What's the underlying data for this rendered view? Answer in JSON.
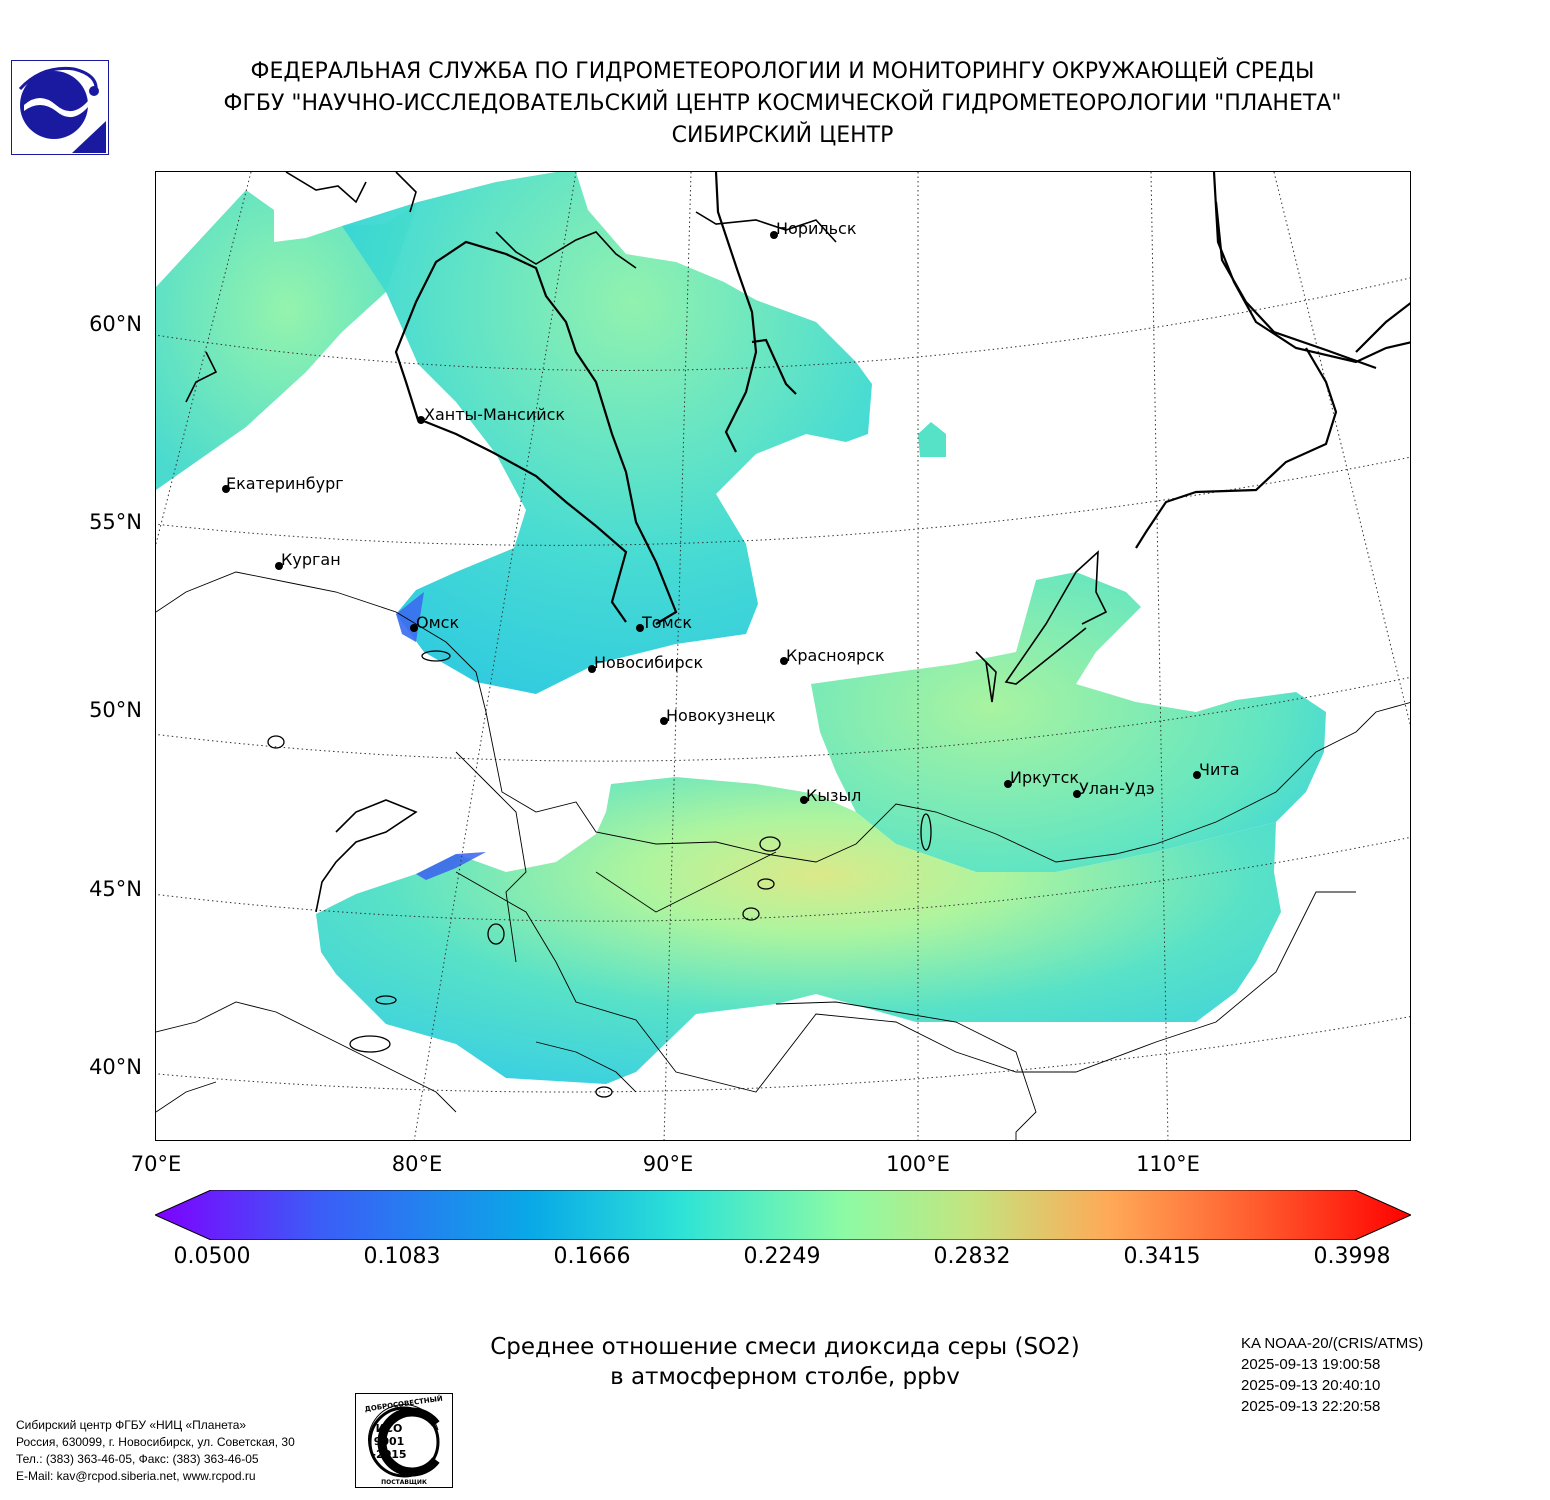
{
  "header": {
    "line1": "ФЕДЕРАЛЬНАЯ СЛУЖБА ПО ГИДРОМЕТЕОРОЛОГИИ И МОНИТОРИНГУ ОКРУЖАЮЩЕЙ СРЕДЫ",
    "line2": "ФГБУ \"НАУЧНО-ИССЛЕДОВАТЕЛЬСКИЙ ЦЕНТР КОСМИЧЕСКОЙ ГИДРОМЕТЕОРОЛОГИИ \"ПЛАНЕТА\"",
    "line3": "СИБИРСКИЙ ЦЕНТР"
  },
  "logo": {
    "icon": "planeta-logo-icon",
    "color": "#1a1aa0"
  },
  "map": {
    "lat_labels": [
      "60°N",
      "55°N",
      "50°N",
      "45°N",
      "40°N"
    ],
    "lon_labels": [
      "70°E",
      "80°E",
      "90°E",
      "100°E",
      "110°E"
    ],
    "cities": [
      {
        "name": "Норильск"
      },
      {
        "name": "Ханты-Мансийск"
      },
      {
        "name": "Екатеринбург"
      },
      {
        "name": "Курган"
      },
      {
        "name": "Омск"
      },
      {
        "name": "Томск"
      },
      {
        "name": "Новосибирск"
      },
      {
        "name": "Красноярск"
      },
      {
        "name": "Новокузнецк"
      },
      {
        "name": "Кызыл"
      },
      {
        "name": "Иркутск"
      },
      {
        "name": "Улан-Удэ"
      },
      {
        "name": "Чита"
      }
    ]
  },
  "colorbar": {
    "min": 0.05,
    "max": 0.3998,
    "ticks": [
      "0.0500",
      "0.1083",
      "0.1666",
      "0.2249",
      "0.2832",
      "0.3415",
      "0.3998"
    ],
    "colors": [
      "#7f00ff",
      "#3c5cf7",
      "#09a9e7",
      "#2ee3d6",
      "#8dfba4",
      "#c4e47f",
      "#ffa957",
      "#ff5a2d",
      "#ff0000"
    ]
  },
  "caption": {
    "line1": "Среднее отношение смеси диоксида серы (SO2)",
    "line2": "в атмосферном столбе, ppbv"
  },
  "satellite": {
    "name": "KA NOAA-20/(CRIS/ATMS)",
    "times": [
      "2025-09-13 19:00:58",
      "2025-09-13 20:40:10",
      "2025-09-13 22:20:58"
    ]
  },
  "footer": {
    "lines": [
      "Сибирский центр ФГБУ «НИЦ «Планета»",
      "Россия, 630099, г. Новосибирск, ул. Советская, 30",
      "Тел.: (383) 363-46-05, Факс: (383) 363-46-05",
      "E-Mail: kav@rcpod.siberia.net, www.rcpod.ru"
    ]
  },
  "iso_stamp": {
    "top_text": "ДОБРОСОВЕСТНЫЙ",
    "bottom_text": "ПОСТАВЩИК",
    "line1": "ИСО",
    "line2": "9001",
    "line3": "-2015"
  }
}
